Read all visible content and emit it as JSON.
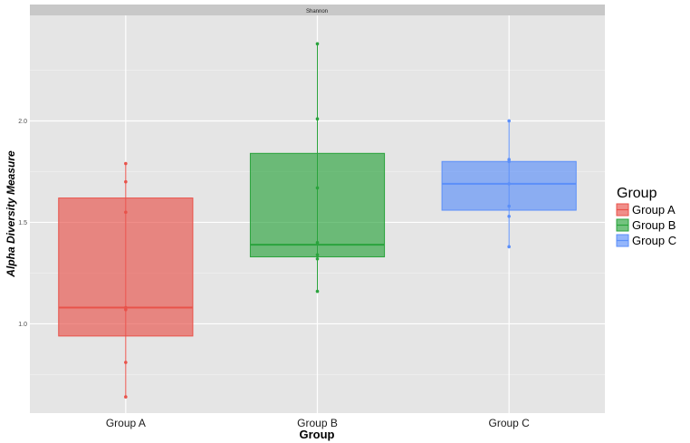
{
  "chart_data": {
    "type": "box",
    "facet_title": "Shannon",
    "xlabel": "Group",
    "ylabel": "Alpha Diversity Measure",
    "ylim": [
      0.56,
      2.52
    ],
    "yticks": [
      1.0,
      1.5,
      2.0
    ],
    "ytick_labels": [
      "1.0",
      "1.5",
      "2.0"
    ],
    "grid": true,
    "legend": {
      "title": "Group",
      "placement": "right",
      "entries": [
        "Group A",
        "Group B",
        "Group C"
      ]
    },
    "categories": [
      "Group A",
      "Group B",
      "Group C"
    ],
    "colors": [
      "#e8524a",
      "#2aa33c",
      "#5b8ff9"
    ],
    "series": [
      {
        "name": "Group A",
        "q1": 0.94,
        "median": 1.08,
        "q3": 1.62,
        "whisker_low": 0.64,
        "whisker_high": 1.79,
        "points": [
          1.79,
          1.7,
          1.55,
          1.08,
          1.07,
          0.81,
          0.64
        ]
      },
      {
        "name": "Group B",
        "q1": 1.33,
        "median": 1.39,
        "q3": 1.84,
        "whisker_low": 1.16,
        "whisker_high": 2.38,
        "points": [
          2.38,
          2.01,
          1.67,
          1.4,
          1.34,
          1.32,
          1.16
        ]
      },
      {
        "name": "Group C",
        "q1": 1.56,
        "median": 1.69,
        "q3": 1.8,
        "whisker_low": 1.38,
        "whisker_high": 2.0,
        "points": [
          2.0,
          1.81,
          1.8,
          1.69,
          1.58,
          1.53,
          1.38
        ]
      }
    ]
  }
}
